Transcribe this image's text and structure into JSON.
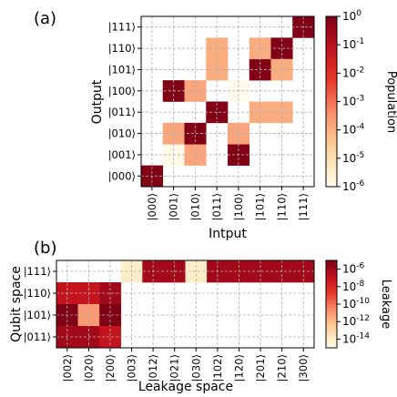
{
  "chart_data": [
    {
      "panel_label": "(a)",
      "type": "heatmap",
      "xlabel": "Intput",
      "ylabel": "Output",
      "x_categories": [
        "|000⟩",
        "|001⟩",
        "|010⟩",
        "|011⟩",
        "|100⟩",
        "|101⟩",
        "|110⟩",
        "|111⟩"
      ],
      "y_categories": [
        "|000⟩",
        "|001⟩",
        "|010⟩",
        "|011⟩",
        "|100⟩",
        "|101⟩",
        "|110⟩",
        "|111⟩"
      ],
      "grid": true,
      "colorbar": {
        "label": "Population",
        "scale": "log",
        "range": [
          1e-06,
          1
        ],
        "ticks": [
          {
            "exp": 0,
            "label": "10^0"
          },
          {
            "exp": -1,
            "label": "10^-1"
          },
          {
            "exp": -2,
            "label": "10^-2"
          },
          {
            "exp": -3,
            "label": "10^-3"
          },
          {
            "exp": -4,
            "label": "10^-4"
          },
          {
            "exp": -5,
            "label": "10^-5"
          },
          {
            "exp": -6,
            "label": "10^-6"
          }
        ]
      },
      "cells": [
        {
          "input": "|000⟩",
          "output": "|000⟩",
          "value": 0.98
        },
        {
          "input": "|001⟩",
          "output": "|001⟩",
          "value": 1.2e-06
        },
        {
          "input": "|001⟩",
          "output": "|100⟩",
          "value": 0.98
        },
        {
          "input": "|001⟩",
          "output": "|010⟩",
          "value": 0.00016
        },
        {
          "input": "|010⟩",
          "output": "|001⟩",
          "value": 0.00016
        },
        {
          "input": "|010⟩",
          "output": "|010⟩",
          "value": 0.97
        },
        {
          "input": "|010⟩",
          "output": "|100⟩",
          "value": 0.00016
        },
        {
          "input": "|011⟩",
          "output": "|011⟩",
          "value": 0.97
        },
        {
          "input": "|011⟩",
          "output": "|110⟩",
          "value": 0.00012
        },
        {
          "input": "|011⟩",
          "output": "|101⟩",
          "value": 0.00012
        },
        {
          "input": "|100⟩",
          "output": "|001⟩",
          "value": 0.98
        },
        {
          "input": "|100⟩",
          "output": "|010⟩",
          "value": 0.00016
        },
        {
          "input": "|100⟩",
          "output": "|100⟩",
          "value": 1e-06
        },
        {
          "input": "|101⟩",
          "output": "|101⟩",
          "value": 0.97
        },
        {
          "input": "|101⟩",
          "output": "|110⟩",
          "value": 0.00012
        },
        {
          "input": "|101⟩",
          "output": "|011⟩",
          "value": 0.00012
        },
        {
          "input": "|110⟩",
          "output": "|110⟩",
          "value": 0.97
        },
        {
          "input": "|110⟩",
          "output": "|101⟩",
          "value": 0.00012
        },
        {
          "input": "|110⟩",
          "output": "|011⟩",
          "value": 0.00012
        },
        {
          "input": "|111⟩",
          "output": "|111⟩",
          "value": 0.98
        }
      ]
    },
    {
      "panel_label": "(b)",
      "type": "heatmap",
      "xlabel": "Leakage space",
      "ylabel": "Qubit space",
      "x_categories": [
        "|002⟩",
        "|020⟩",
        "|200⟩",
        "|003⟩",
        "|012⟩",
        "|021⟩",
        "|030⟩",
        "|102⟩",
        "|120⟩",
        "|201⟩",
        "|210⟩",
        "|300⟩"
      ],
      "y_categories": [
        "|011⟩",
        "|101⟩",
        "|110⟩",
        "|111⟩"
      ],
      "grid": true,
      "colorbar": {
        "label": "Leakage",
        "scale": "log",
        "range": [
          1e-15,
          1e-05
        ],
        "ticks": [
          {
            "exp": -6,
            "label": "10^-6"
          },
          {
            "exp": -8,
            "label": "10^-8"
          },
          {
            "exp": -10,
            "label": "10^-10"
          },
          {
            "exp": -12,
            "label": "10^-12"
          },
          {
            "exp": -14,
            "label": "10^-14"
          }
        ]
      },
      "matrix_rows_top_to_bottom": [
        {
          "row": "|111⟩",
          "values": [
            null,
            null,
            null,
            1e-14,
            1e-06,
            1e-06,
            1e-14,
            1e-06,
            1e-06,
            1e-06,
            1e-06,
            1e-06
          ]
        },
        {
          "row": "|110⟩",
          "values": [
            1e-07,
            1e-07,
            1e-06,
            null,
            null,
            null,
            null,
            null,
            null,
            null,
            null,
            null
          ]
        },
        {
          "row": "|101⟩",
          "values": [
            1e-05,
            1e-11,
            1e-05,
            null,
            null,
            null,
            null,
            null,
            null,
            null,
            null,
            null
          ]
        },
        {
          "row": "|011⟩",
          "values": [
            1e-06,
            1e-06,
            1e-07,
            null,
            null,
            null,
            null,
            null,
            null,
            null,
            null,
            null
          ]
        }
      ]
    }
  ]
}
